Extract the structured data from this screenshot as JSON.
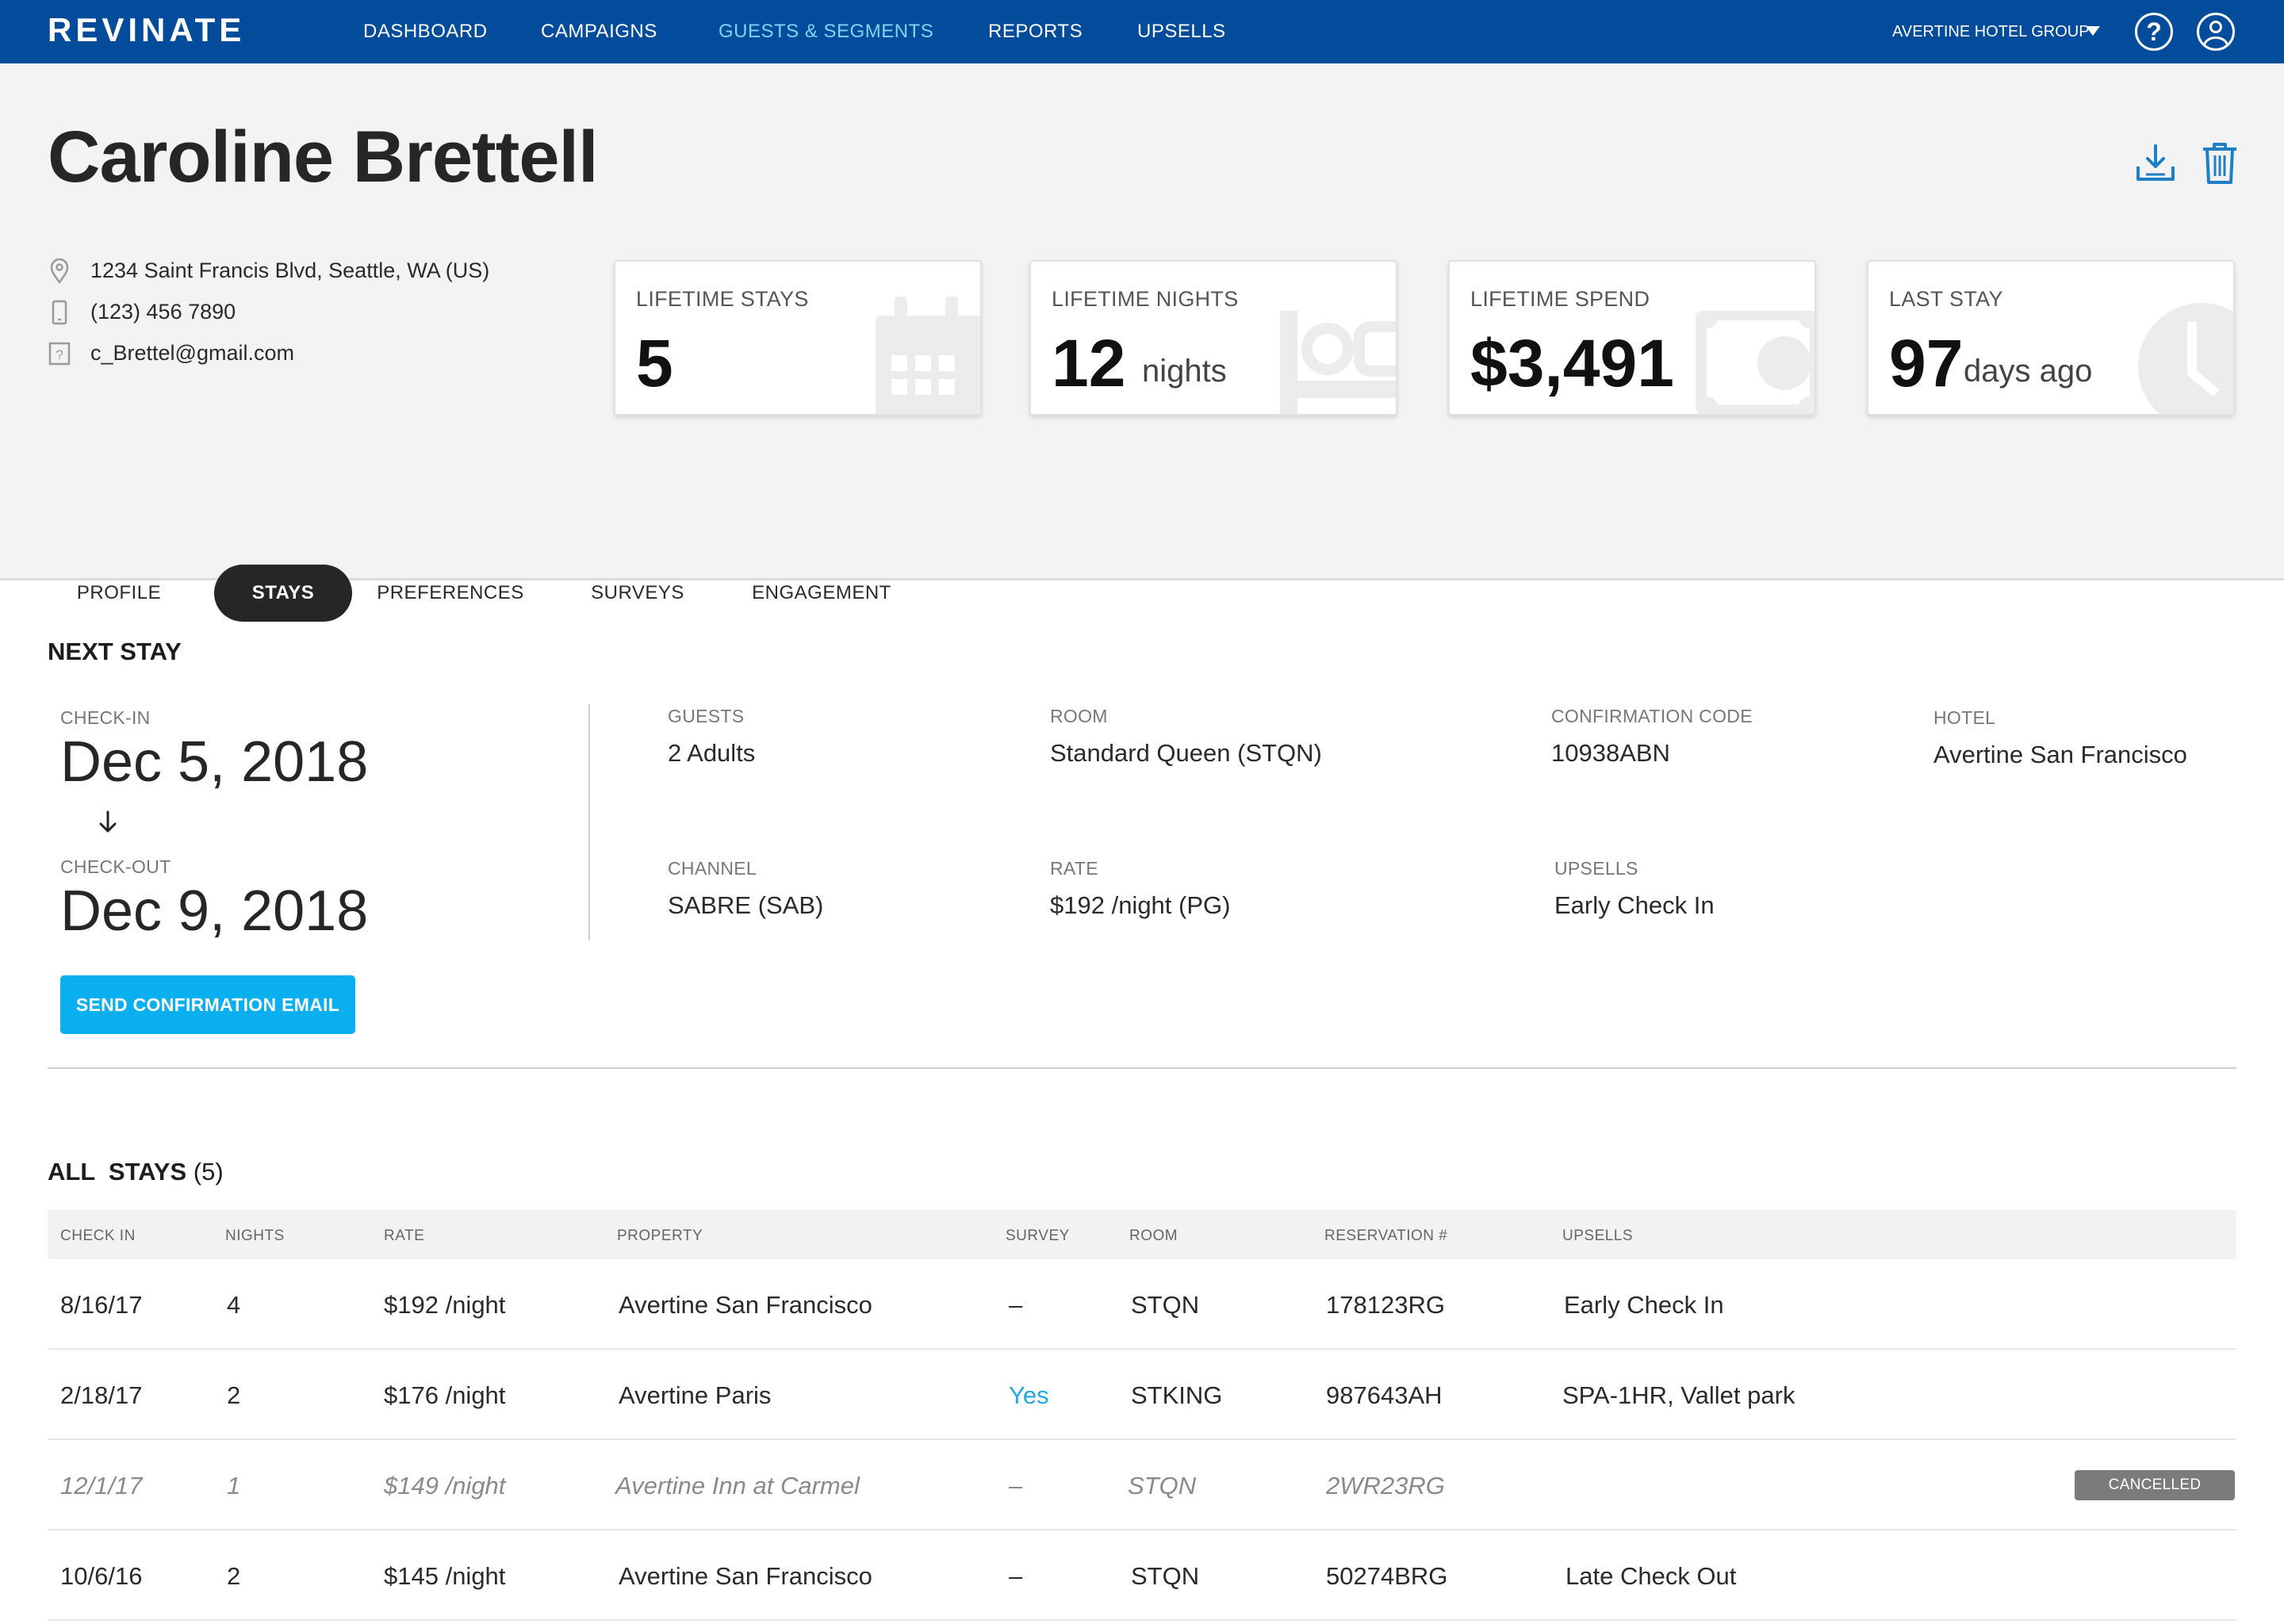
{
  "nav": {
    "logo": "REVINATE",
    "items": [
      "DASHBOARD",
      "CAMPAIGNS",
      "GUESTS & SEGMENTS",
      "REPORTS",
      "UPSELLS"
    ],
    "active": "GUESTS & SEGMENTS",
    "org": "AVERTINE HOTEL GROUP",
    "help_glyph": "?",
    "accent": "#034c9c"
  },
  "guest": {
    "name": "Caroline Brettell",
    "address": "1234 Saint Francis Blvd, Seattle, WA (US)",
    "phone": "(123) 456 7890",
    "email": "c_Brettel@gmail.com"
  },
  "stats": [
    {
      "label": "LIFETIME STAYS",
      "value": "5",
      "unit": "",
      "icon": "calendar-icon"
    },
    {
      "label": "LIFETIME NIGHTS",
      "value": "12",
      "unit": "nights",
      "icon": "bed-icon"
    },
    {
      "label": "LIFETIME SPEND",
      "value": "$3,491",
      "unit": "",
      "icon": "money-icon"
    },
    {
      "label": "LAST STAY",
      "value": "97",
      "unit": "days ago",
      "icon": "clock-icon"
    }
  ],
  "tabs": [
    "PROFILE",
    "STAYS",
    "PREFERENCES",
    "SURVEYS",
    "ENGAGEMENT"
  ],
  "active_tab": "STAYS",
  "next_stay": {
    "title": "NEXT STAY",
    "checkin_label": "CHECK-IN",
    "checkin": "Dec 5, 2018",
    "checkout_label": "CHECK-OUT",
    "checkout": "Dec 9, 2018",
    "guests_label": "GUESTS",
    "guests": "2 Adults",
    "room_label": "ROOM",
    "room": "Standard Queen (STQN)",
    "confirmation_label": "CONFIRMATION CODE",
    "confirmation": "10938ABN",
    "hotel_label": "HOTEL",
    "hotel": "Avertine San Francisco",
    "channel_label": "CHANNEL",
    "channel": "SABRE (SAB)",
    "rate_label": "RATE",
    "rate": "$192 /night (PG)",
    "upsells_label": "UPSELLS",
    "upsells": "Early Check In",
    "send_button": "SEND CONFIRMATION EMAIL",
    "button_color": "#0aafef"
  },
  "all_stays": {
    "title": "ALL  STAYS",
    "count": "(5)",
    "columns": [
      "CHECK IN",
      "NIGHTS",
      "RATE",
      "PROPERTY",
      "SURVEY",
      "ROOM",
      "RESERVATION #",
      "UPSELLS"
    ],
    "rows": [
      {
        "checkin": "8/16/17",
        "nights": "4",
        "rate": "$192 /night",
        "property": "Avertine San Francisco",
        "survey": "–",
        "room": "STQN",
        "reservation": "178123RG",
        "upsells": "Early Check In",
        "status": ""
      },
      {
        "checkin": "2/18/17",
        "nights": "2",
        "rate": "$176 /night",
        "property": "Avertine Paris",
        "survey": "Yes",
        "room": "STKING",
        "reservation": "987643AH",
        "upsells": "SPA-1HR, Vallet park",
        "status": ""
      },
      {
        "checkin": "12/1/17",
        "nights": "1",
        "rate": "$149 /night",
        "property": "Avertine Inn at Carmel",
        "survey": "–",
        "room": "STQN",
        "reservation": "2WR23RG",
        "upsells": "",
        "status": "CANCELLED"
      },
      {
        "checkin": "10/6/16",
        "nights": "2",
        "rate": "$145 /night",
        "property": "Avertine San Francisco",
        "survey": "–",
        "room": "STQN",
        "reservation": "50274BRG",
        "upsells": "Late Check Out",
        "status": ""
      }
    ]
  }
}
